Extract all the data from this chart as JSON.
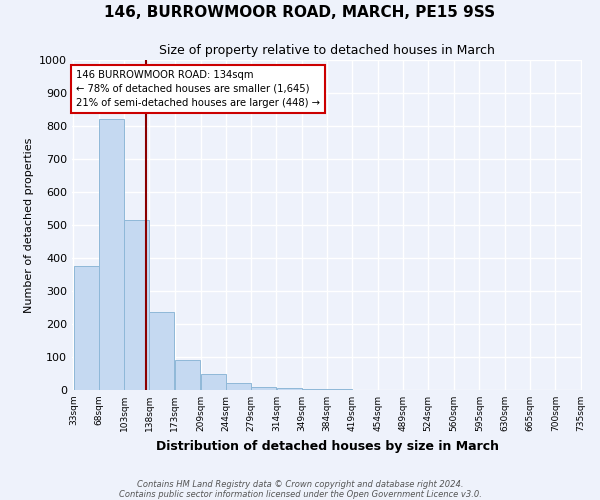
{
  "title": "146, BURROWMOOR ROAD, MARCH, PE15 9SS",
  "subtitle": "Size of property relative to detached houses in March",
  "xlabel": "Distribution of detached houses by size in March",
  "ylabel": "Number of detached properties",
  "footer_line1": "Contains HM Land Registry data © Crown copyright and database right 2024.",
  "footer_line2": "Contains public sector information licensed under the Open Government Licence v3.0.",
  "bar_edges": [
    33,
    68,
    103,
    138,
    173,
    209,
    244,
    279,
    314,
    349,
    384,
    419,
    454,
    489,
    524,
    560,
    595,
    630,
    665,
    700,
    735
  ],
  "bar_heights": [
    375,
    820,
    515,
    235,
    90,
    50,
    20,
    10,
    5,
    3,
    2,
    0,
    0,
    0,
    0,
    0,
    0,
    0,
    0,
    0
  ],
  "bar_color": "#c5d9f1",
  "bar_edgecolor": "#8fb8d8",
  "property_sqm": 134,
  "vline_color": "#8b0000",
  "annotation_line1": "146 BURROWMOOR ROAD: 134sqm",
  "annotation_line2": "← 78% of detached houses are smaller (1,645)",
  "annotation_line3": "21% of semi-detached houses are larger (448) →",
  "annotation_box_color": "#ffffff",
  "annotation_border_color": "#cc0000",
  "ylim": [
    0,
    1000
  ],
  "yticks": [
    0,
    100,
    200,
    300,
    400,
    500,
    600,
    700,
    800,
    900,
    1000
  ],
  "background_color": "#eef2fb",
  "plot_bg_color": "#eef2fb",
  "grid_color": "#ffffff",
  "title_fontsize": 11,
  "subtitle_fontsize": 9
}
